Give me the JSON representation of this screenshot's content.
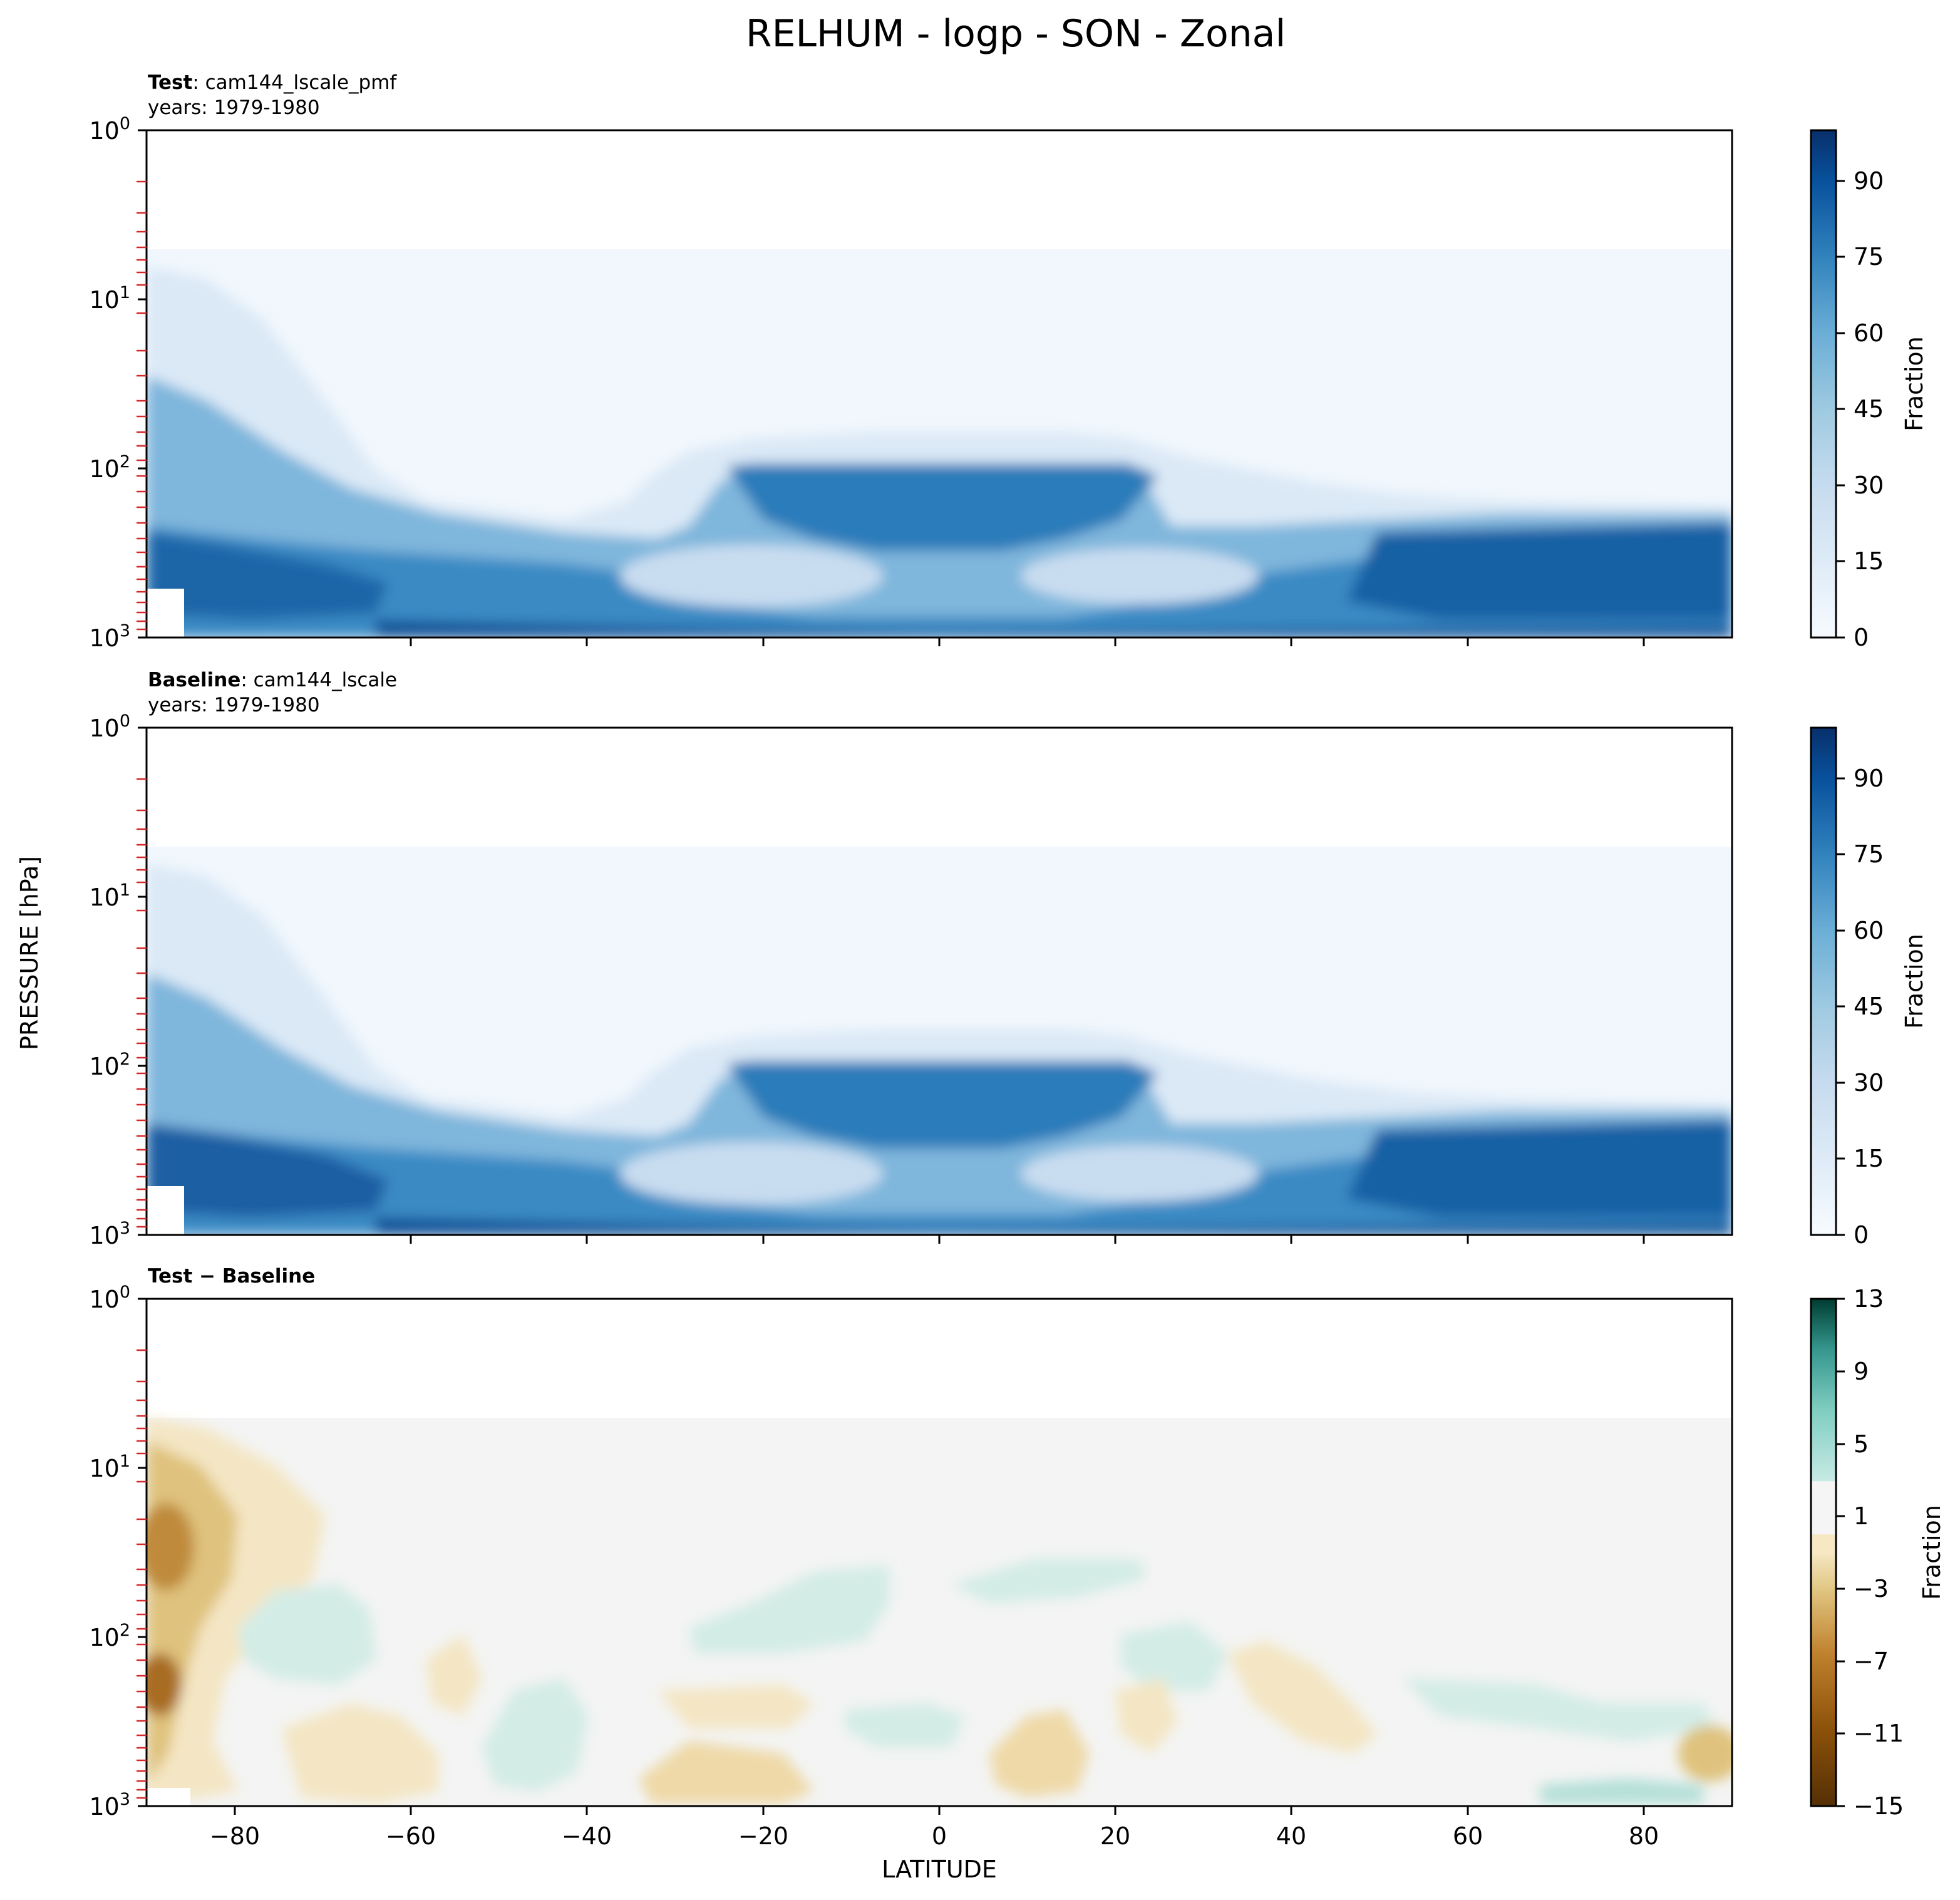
{
  "figure": {
    "title": "RELHUM - logp - SON - Zonal",
    "ylabel": "PRESSURE [hPa]",
    "xlabel": "LATITUDE",
    "xticks": [
      "−80",
      "−60",
      "−40",
      "−20",
      "0",
      "20",
      "40",
      "60",
      "80"
    ]
  },
  "chart_data": [
    {
      "type": "heatmap",
      "panel": "test",
      "label_bold": "Test",
      "label_rest": ": cam144_lscale_pmf",
      "years": "years: 1979-1980",
      "xlim": [
        -90,
        90
      ],
      "ylim": [
        1000,
        1
      ],
      "y_scale": "log",
      "yticks": [
        "10^0",
        "10^1",
        "10^2",
        "10^3"
      ],
      "colorbar": {
        "label": "Fraction",
        "ticks": [
          "0",
          "15",
          "30",
          "45",
          "60",
          "75",
          "90"
        ],
        "range": [
          0,
          100
        ],
        "cmap": "Blues"
      }
    },
    {
      "type": "heatmap",
      "panel": "baseline",
      "label_bold": "Baseline",
      "label_rest": ": cam144_lscale",
      "years": "years: 1979-1980",
      "xlim": [
        -90,
        90
      ],
      "ylim": [
        1000,
        1
      ],
      "y_scale": "log",
      "yticks": [
        "10^0",
        "10^1",
        "10^2",
        "10^3"
      ],
      "colorbar": {
        "label": "Fraction",
        "ticks": [
          "0",
          "15",
          "30",
          "45",
          "60",
          "75",
          "90"
        ],
        "range": [
          0,
          100
        ],
        "cmap": "Blues"
      }
    },
    {
      "type": "heatmap",
      "panel": "diff",
      "label_bold": "Test − Baseline",
      "xlim": [
        -90,
        90
      ],
      "ylim": [
        1000,
        1
      ],
      "y_scale": "log",
      "yticks": [
        "10^0",
        "10^1",
        "10^2",
        "10^3"
      ],
      "colorbar": {
        "label": "Fraction",
        "ticks": [
          "13",
          "9",
          "5",
          "1",
          "−3",
          "−7",
          "−11",
          "−15"
        ],
        "range": [
          -15,
          13
        ],
        "cmap": "BrBG"
      }
    }
  ]
}
